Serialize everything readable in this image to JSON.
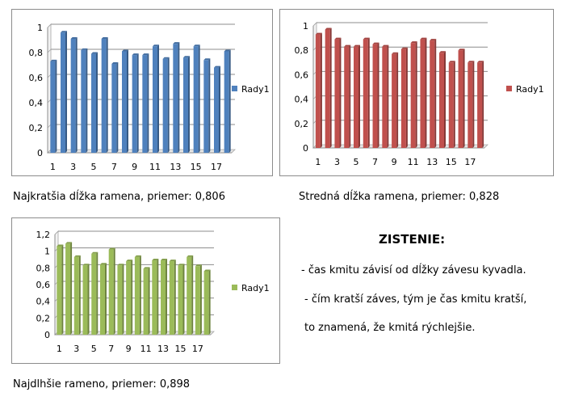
{
  "chart_data": [
    {
      "type": "bar",
      "categories": [
        "1",
        "2",
        "3",
        "4",
        "5",
        "6",
        "7",
        "8",
        "9",
        "10",
        "11",
        "12",
        "13",
        "14",
        "15",
        "16",
        "17",
        "18"
      ],
      "x_tick_labels": [
        "1",
        "3",
        "5",
        "7",
        "9",
        "11",
        "13",
        "15",
        "17"
      ],
      "y_tick_labels": [
        "0",
        "0,2",
        "0,4",
        "0,6",
        "0,8",
        "1"
      ],
      "ylim": [
        0,
        1
      ],
      "y_ticks": [
        0,
        0.2,
        0.4,
        0.6,
        0.8,
        1
      ],
      "grid": true,
      "legend": "right",
      "color": "#4f81bd",
      "series": [
        {
          "name": "Rady1",
          "values": [
            0.73,
            0.96,
            0.91,
            0.82,
            0.79,
            0.91,
            0.71,
            0.81,
            0.78,
            0.78,
            0.85,
            0.75,
            0.87,
            0.76,
            0.85,
            0.74,
            0.68,
            0.81
          ]
        }
      ],
      "caption": "Najkratšia dĺžka  ramena, priemer: 0,806"
    },
    {
      "type": "bar",
      "categories": [
        "1",
        "2",
        "3",
        "4",
        "5",
        "6",
        "7",
        "8",
        "9",
        "10",
        "11",
        "12",
        "13",
        "14",
        "15",
        "16",
        "17",
        "18"
      ],
      "x_tick_labels": [
        "1",
        "3",
        "5",
        "7",
        "9",
        "11",
        "13",
        "15",
        "17"
      ],
      "y_tick_labels": [
        "0",
        "0,2",
        "0,4",
        "0,6",
        "0,8",
        "1"
      ],
      "ylim": [
        0,
        1
      ],
      "y_ticks": [
        0,
        0.2,
        0.4,
        0.6,
        0.8,
        1
      ],
      "grid": true,
      "legend": "right",
      "color": "#c0504d",
      "series": [
        {
          "name": "Rady1",
          "values": [
            0.93,
            0.97,
            0.89,
            0.83,
            0.83,
            0.89,
            0.85,
            0.83,
            0.77,
            0.81,
            0.86,
            0.89,
            0.88,
            0.78,
            0.7,
            0.8,
            0.7,
            0.7
          ]
        }
      ],
      "caption": "Stredná dĺžka ramena, priemer: 0,828"
    },
    {
      "type": "bar",
      "categories": [
        "1",
        "2",
        "3",
        "4",
        "5",
        "6",
        "7",
        "8",
        "9",
        "10",
        "11",
        "12",
        "13",
        "14",
        "15",
        "16",
        "17",
        "18"
      ],
      "x_tick_labels": [
        "1",
        "3",
        "5",
        "7",
        "9",
        "11",
        "13",
        "15",
        "17"
      ],
      "y_tick_labels": [
        "0",
        "0,2",
        "0,4",
        "0,6",
        "0,8",
        "1",
        "1,2"
      ],
      "ylim": [
        0,
        1.2
      ],
      "y_ticks": [
        0,
        0.2,
        0.4,
        0.6,
        0.8,
        1,
        1.2
      ],
      "grid": true,
      "legend": "right",
      "color": "#9bbb59",
      "series": [
        {
          "name": "Rady1",
          "values": [
            1.06,
            1.09,
            0.93,
            0.83,
            0.97,
            0.84,
            1.02,
            0.83,
            0.88,
            0.93,
            0.79,
            0.89,
            0.89,
            0.88,
            0.83,
            0.93,
            0.82,
            0.76
          ]
        }
      ],
      "caption": "Najdlhšie rameno, priemer: 0,898"
    }
  ],
  "conclusion": {
    "title": "ZISTENIE:",
    "lines": [
      "- čas kmitu závisí od dĺžky závesu kyvadla.",
      "- čím kratší záves, tým je čas kmitu kratší,",
      "to znamená, že kmitá rýchlejšie."
    ]
  }
}
